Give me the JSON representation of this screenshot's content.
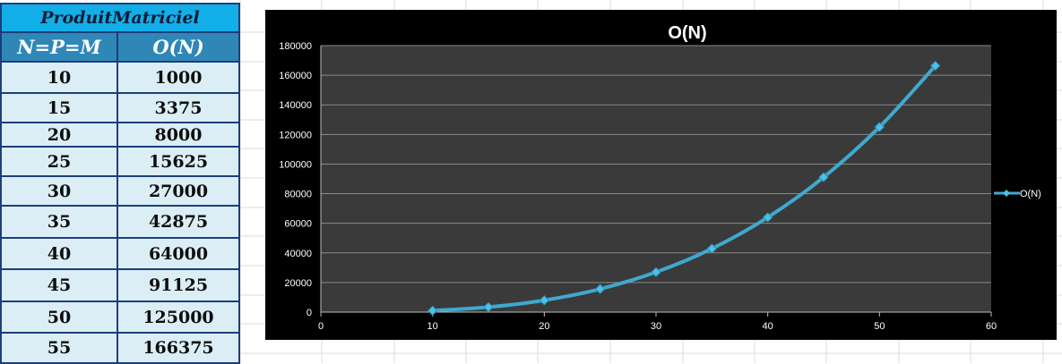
{
  "table": {
    "title": "ProduitMatriciel",
    "headers": [
      "N=P=M",
      "O(N)"
    ],
    "rows": [
      [
        "10",
        "1000"
      ],
      [
        "15",
        "3375"
      ],
      [
        "20",
        "8000"
      ],
      [
        "25",
        "15625"
      ],
      [
        "30",
        "27000"
      ],
      [
        "35",
        "42875"
      ],
      [
        "40",
        "64000"
      ],
      [
        "45",
        "91125"
      ],
      [
        "50",
        "125000"
      ],
      [
        "55",
        "166375"
      ]
    ]
  },
  "colors": {
    "title_cell": "#12aee8",
    "header_cell": "#2f87b8",
    "body_cell": "#dbeef6",
    "series": "#3fa9cf",
    "plot_bg": "#3a3a3a",
    "chart_bg": "#000000"
  },
  "chart_data": {
    "type": "line",
    "title": "O(N)",
    "xlabel": "",
    "ylabel": "",
    "xlim": [
      0,
      60
    ],
    "ylim": [
      0,
      180000
    ],
    "x_ticks": [
      "0",
      "10",
      "20",
      "30",
      "40",
      "50",
      "60"
    ],
    "y_ticks": [
      "0",
      "20000",
      "40000",
      "60000",
      "80000",
      "100000",
      "120000",
      "140000",
      "160000",
      "180000"
    ],
    "grid": true,
    "legend": "right",
    "marker": "diamond",
    "smooth": true,
    "series": [
      {
        "name": "O(N)",
        "x": [
          10,
          15,
          20,
          25,
          30,
          35,
          40,
          45,
          50,
          55
        ],
        "y": [
          1000,
          3375,
          8000,
          15625,
          27000,
          42875,
          64000,
          91125,
          125000,
          166375
        ]
      }
    ]
  }
}
